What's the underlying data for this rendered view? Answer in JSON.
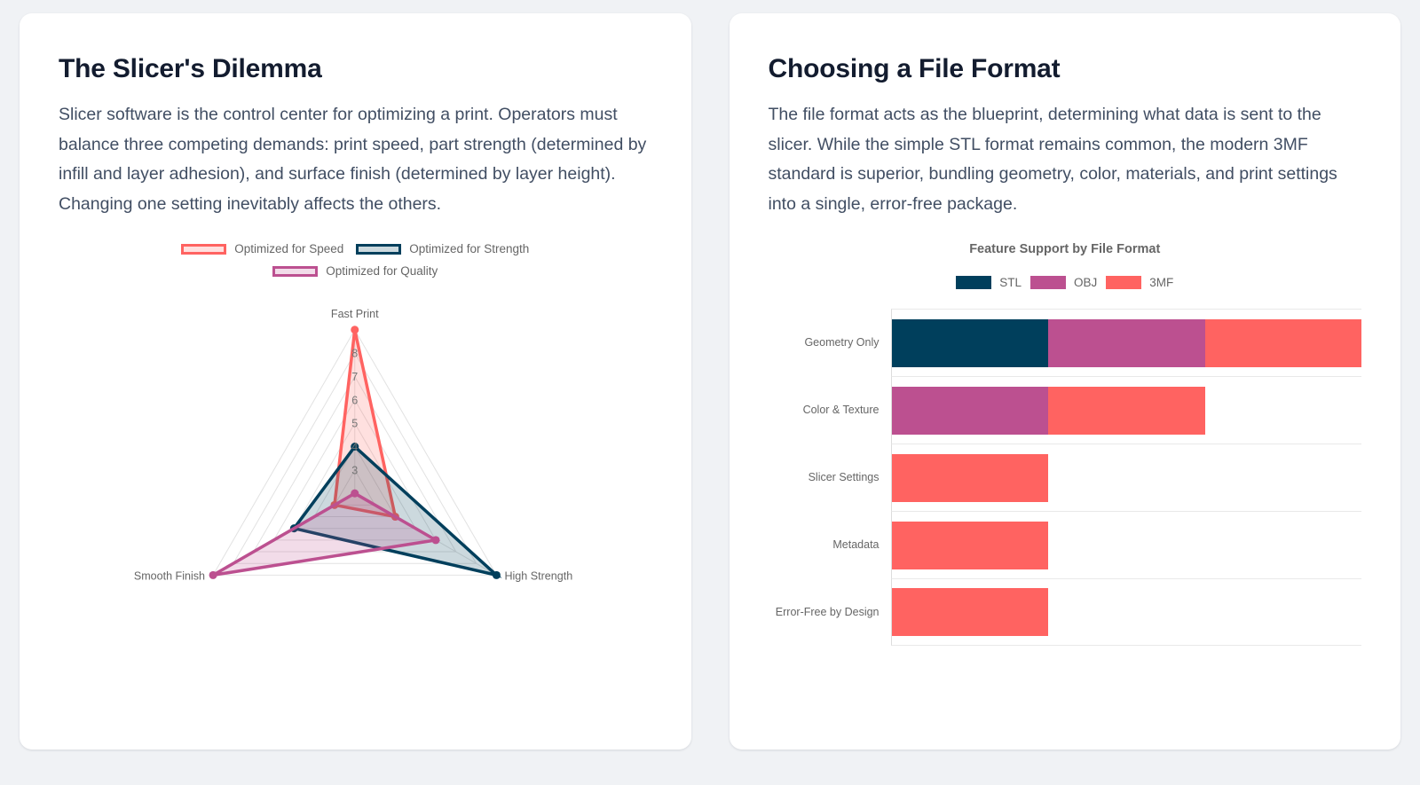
{
  "cards": {
    "slicer": {
      "title": "The Slicer's Dilemma",
      "body": "Slicer software is the control center for optimizing a print. Operators must balance three competing demands: print speed, part strength (determined by infill and layer adhesion), and surface finish (determined by layer height). Changing one setting inevitably affects the others."
    },
    "format": {
      "title": "Choosing a File Format",
      "body": "The file format acts as the blueprint, determining what data is sent to the slicer. While the simple STL format remains common, the modern 3MF standard is superior, bundling geometry, color, materials, and print settings into a single, error-free package."
    }
  },
  "chart_data": [
    {
      "type": "radar",
      "title": "",
      "axes": [
        "Fast Print",
        "High Strength",
        "Smooth Finish"
      ],
      "scale": {
        "min": 2,
        "max": 9,
        "tick_step": 1,
        "visible_tick_labels": [
          3,
          4,
          5,
          6,
          7,
          8
        ]
      },
      "series": [
        {
          "name": "Optimized for Speed",
          "color": "#ff6361",
          "fill_alpha": 0.2,
          "values": [
            9,
            4,
            3
          ]
        },
        {
          "name": "Optimized for Strength",
          "color": "#003f5c",
          "fill_alpha": 0.2,
          "values": [
            4,
            9,
            5
          ]
        },
        {
          "name": "Optimized for Quality",
          "color": "#bc5090",
          "fill_alpha": 0.2,
          "values": [
            2,
            6,
            9
          ]
        }
      ],
      "grid_color": "#e2e2e2",
      "tick_label_color": "#757575",
      "axis_label_color": "#666666",
      "legend_position": "top"
    },
    {
      "type": "bar",
      "orientation": "horizontal-stacked",
      "title": "Feature Support by File Format",
      "categories": [
        "Geometry Only",
        "Color & Texture",
        "Slicer Settings",
        "Metadata",
        "Error-Free by Design"
      ],
      "series": [
        {
          "name": "STL",
          "color": "#003f5c",
          "values": [
            1,
            0,
            0,
            0,
            0
          ]
        },
        {
          "name": "OBJ",
          "color": "#bc5090",
          "values": [
            1,
            1,
            0,
            0,
            0
          ]
        },
        {
          "name": "3MF",
          "color": "#ff6361",
          "values": [
            1,
            1,
            1,
            1,
            1
          ]
        }
      ],
      "xlim": [
        0,
        3
      ],
      "grid": true,
      "legend_position": "top"
    }
  ]
}
